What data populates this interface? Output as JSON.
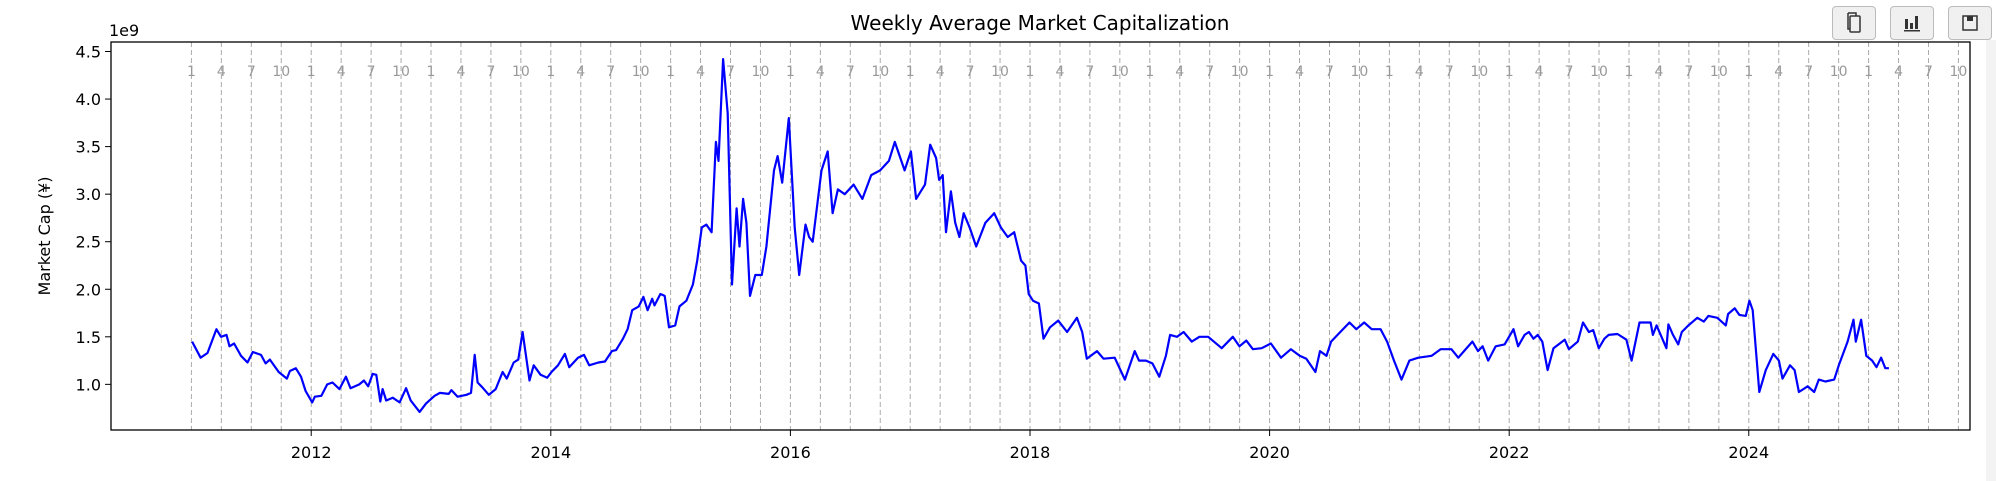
{
  "toolbar": {
    "buttons": [
      {
        "name": "copy-button",
        "icon": "copy-icon"
      },
      {
        "name": "chart-button",
        "icon": "bar-chart-icon"
      },
      {
        "name": "save-button",
        "icon": "floppy-disk-icon"
      }
    ]
  },
  "chart_data": {
    "type": "line",
    "title": "Weekly Average Market Capitalization",
    "xlabel": "",
    "ylabel": "Market Cap (¥)",
    "y_offset_label": "1e9",
    "y_unit_multiplier": 1000000000,
    "xlim": [
      "2010-05-01",
      "2025-11-06"
    ],
    "ylim": [
      0.52,
      4.6
    ],
    "yticks": [
      1.0,
      1.5,
      2.0,
      2.5,
      3.0,
      3.5,
      4.0,
      4.5
    ],
    "xticks": [
      "2012",
      "2014",
      "2016",
      "2018",
      "2020",
      "2022",
      "2024"
    ],
    "month_markers": {
      "years": [
        2011,
        2025
      ],
      "months": [
        "1",
        "4",
        "7",
        "10"
      ],
      "style": "dashed vertical lines"
    },
    "grid": false,
    "line_color": "#0000ff",
    "series": [
      {
        "x": [
          "2011-01-03",
          "2011-01-29",
          "2011-02-19",
          "2011-03-18",
          "2011-04-01",
          "2011-04-18",
          "2011-04-27",
          "2011-05-11",
          "2011-06-01",
          "2011-06-21",
          "2011-07-07",
          "2011-08-01",
          "2011-08-15",
          "2011-08-28",
          "2011-09-24",
          "2011-10-19",
          "2011-10-28",
          "2011-11-15",
          "2011-12-01",
          "2011-12-15",
          "2012-01-04",
          "2012-01-12",
          "2012-02-01",
          "2012-02-19",
          "2012-03-06",
          "2012-03-27",
          "2012-04-16",
          "2012-04-30",
          "2012-05-27",
          "2012-06-10",
          "2012-06-23",
          "2012-07-07",
          "2012-07-18",
          "2012-07-30",
          "2012-08-06",
          "2012-08-17",
          "2012-09-06",
          "2012-09-27",
          "2012-10-17",
          "2012-10-31",
          "2012-11-27",
          "2012-12-17",
          "2013-01-12",
          "2013-01-28",
          "2013-02-24",
          "2013-03-04",
          "2013-03-23",
          "2013-04-19",
          "2013-05-03",
          "2013-05-14",
          "2013-05-23",
          "2013-06-06",
          "2013-06-26",
          "2013-07-17",
          "2013-08-07",
          "2013-08-20",
          "2013-09-10",
          "2013-09-24",
          "2013-10-07",
          "2013-10-28",
          "2013-11-10",
          "2013-12-01",
          "2013-12-21",
          "2014-01-03",
          "2014-01-23",
          "2014-02-13",
          "2014-02-26",
          "2014-03-25",
          "2014-04-12",
          "2014-04-28",
          "2014-05-26",
          "2014-06-15",
          "2014-07-06",
          "2014-07-19",
          "2014-08-09",
          "2014-08-23",
          "2014-09-06",
          "2014-09-26",
          "2014-10-10",
          "2014-10-23",
          "2014-11-06",
          "2014-11-13",
          "2014-12-01",
          "2014-12-14",
          "2014-12-27",
          "2015-01-15",
          "2015-01-28",
          "2015-02-18",
          "2015-03-10",
          "2015-03-23",
          "2015-04-06",
          "2015-04-20",
          "2015-05-06",
          "2015-05-19",
          "2015-05-27",
          "2015-06-10",
          "2015-06-24",
          "2015-07-07",
          "2015-07-21",
          "2015-07-30",
          "2015-08-10",
          "2015-08-20",
          "2015-08-31",
          "2015-09-16",
          "2015-10-06",
          "2015-10-20",
          "2015-11-12",
          "2015-11-23",
          "2015-12-07",
          "2015-12-27",
          "2016-01-14",
          "2016-01-28",
          "2016-02-16",
          "2016-02-27",
          "2016-03-09",
          "2016-04-05",
          "2016-04-24",
          "2016-05-09",
          "2016-05-25",
          "2016-06-15",
          "2016-07-12",
          "2016-08-08",
          "2016-09-04",
          "2016-10-01",
          "2016-10-28",
          "2016-11-15",
          "2016-12-15",
          "2017-01-03",
          "2017-01-19",
          "2017-02-15",
          "2017-03-03",
          "2017-03-21",
          "2017-03-30",
          "2017-04-10",
          "2017-04-20",
          "2017-05-05",
          "2017-05-18",
          "2017-05-31",
          "2017-06-13",
          "2017-07-01",
          "2017-07-21",
          "2017-08-18",
          "2017-09-14",
          "2017-10-04",
          "2017-10-25",
          "2017-11-14",
          "2017-12-05",
          "2017-12-18",
          "2017-12-28",
          "2018-01-10",
          "2018-01-28",
          "2018-02-11",
          "2018-03-03",
          "2018-03-28",
          "2018-04-24",
          "2018-05-24",
          "2018-06-09",
          "2018-06-23",
          "2018-07-24",
          "2018-08-13",
          "2018-09-16",
          "2018-10-17",
          "2018-11-16",
          "2018-11-29",
          "2018-12-20",
          "2019-01-09",
          "2019-01-30",
          "2019-02-19",
          "2019-03-04",
          "2019-03-25",
          "2019-04-14",
          "2019-05-09",
          "2019-06-01",
          "2019-06-28",
          "2019-08-08",
          "2019-09-11",
          "2019-10-01",
          "2019-10-22",
          "2019-11-11",
          "2019-12-08",
          "2020-01-05",
          "2020-02-05",
          "2020-03-06",
          "2020-04-02",
          "2020-04-22",
          "2020-05-20",
          "2020-06-03",
          "2020-06-23",
          "2020-07-07",
          "2020-08-04",
          "2020-09-01",
          "2020-09-22",
          "2020-10-16",
          "2020-11-08",
          "2020-12-05",
          "2020-12-25",
          "2021-01-15",
          "2021-02-07",
          "2021-03-03",
          "2021-03-30",
          "2021-05-10",
          "2021-06-06",
          "2021-07-09",
          "2021-07-30",
          "2021-08-19",
          "2021-09-11",
          "2021-09-28",
          "2021-10-12",
          "2021-10-29",
          "2021-11-21",
          "2021-12-18",
          "2022-01-14",
          "2022-01-28",
          "2022-02-17",
          "2022-03-02",
          "2022-03-16",
          "2022-03-29",
          "2022-04-12",
          "2022-04-28",
          "2022-05-16",
          "2022-06-19",
          "2022-07-02",
          "2022-07-29",
          "2022-08-14",
          "2022-09-01",
          "2022-09-14",
          "2022-10-01",
          "2022-10-18",
          "2022-10-31",
          "2022-11-27",
          "2022-12-24",
          "2023-01-09",
          "2023-02-02",
          "2023-03-08",
          "2023-03-15",
          "2023-03-26",
          "2023-04-25",
          "2023-05-01",
          "2023-05-15",
          "2023-05-31",
          "2023-06-11",
          "2023-07-01",
          "2023-07-28",
          "2023-08-17",
          "2023-08-31",
          "2023-09-27",
          "2023-10-23",
          "2023-10-30",
          "2023-11-19",
          "2023-12-03",
          "2023-12-23",
          "2024-01-03",
          "2024-01-13",
          "2024-02-02",
          "2024-02-22",
          "2024-03-16",
          "2024-04-02",
          "2024-04-13",
          "2024-05-06",
          "2024-05-20",
          "2024-06-02",
          "2024-06-29",
          "2024-07-19",
          "2024-08-02",
          "2024-08-22",
          "2024-09-18",
          "2024-10-02",
          "2024-10-29",
          "2024-11-16",
          "2024-11-23",
          "2024-12-09",
          "2024-12-25",
          "2025-01-12",
          "2025-01-25",
          "2025-02-08",
          "2025-02-21",
          "2025-03-04"
        ],
        "y": [
          1.45,
          1.28,
          1.33,
          1.58,
          1.5,
          1.52,
          1.4,
          1.43,
          1.3,
          1.23,
          1.34,
          1.31,
          1.22,
          1.26,
          1.13,
          1.06,
          1.14,
          1.17,
          1.08,
          0.93,
          0.81,
          0.87,
          0.88,
          1.0,
          1.02,
          0.95,
          1.08,
          0.96,
          1.0,
          1.04,
          0.98,
          1.11,
          1.1,
          0.82,
          0.95,
          0.83,
          0.86,
          0.81,
          0.96,
          0.83,
          0.71,
          0.8,
          0.88,
          0.91,
          0.9,
          0.94,
          0.87,
          0.89,
          0.91,
          1.31,
          1.02,
          0.97,
          0.89,
          0.95,
          1.13,
          1.06,
          1.23,
          1.26,
          1.55,
          1.04,
          1.2,
          1.1,
          1.07,
          1.13,
          1.2,
          1.32,
          1.18,
          1.28,
          1.31,
          1.2,
          1.23,
          1.24,
          1.35,
          1.36,
          1.48,
          1.58,
          1.78,
          1.82,
          1.92,
          1.78,
          1.9,
          1.83,
          1.95,
          1.93,
          1.6,
          1.62,
          1.82,
          1.88,
          2.05,
          2.3,
          2.65,
          2.68,
          2.6,
          3.55,
          3.35,
          4.42,
          3.85,
          2.05,
          2.85,
          2.45,
          2.95,
          2.7,
          1.93,
          2.15,
          2.15,
          2.45,
          3.25,
          3.4,
          3.12,
          3.8,
          2.65,
          2.15,
          2.68,
          2.55,
          2.5,
          3.25,
          3.45,
          2.8,
          3.05,
          3.0,
          3.1,
          2.95,
          3.2,
          3.25,
          3.35,
          3.55,
          3.25,
          3.45,
          2.95,
          3.1,
          3.52,
          3.38,
          3.15,
          3.2,
          2.6,
          3.03,
          2.7,
          2.55,
          2.8,
          2.65,
          2.45,
          2.7,
          2.8,
          2.65,
          2.55,
          2.6,
          2.3,
          2.25,
          1.95,
          1.88,
          1.85,
          1.48,
          1.6,
          1.67,
          1.55,
          1.7,
          1.55,
          1.27,
          1.35,
          1.27,
          1.28,
          1.05,
          1.35,
          1.25,
          1.25,
          1.22,
          1.08,
          1.3,
          1.52,
          1.5,
          1.55,
          1.45,
          1.5,
          1.5,
          1.38,
          1.5,
          1.4,
          1.46,
          1.37,
          1.38,
          1.43,
          1.28,
          1.37,
          1.3,
          1.27,
          1.13,
          1.35,
          1.3,
          1.45,
          1.55,
          1.65,
          1.58,
          1.65,
          1.58,
          1.58,
          1.45,
          1.25,
          1.05,
          1.25,
          1.28,
          1.3,
          1.37,
          1.37,
          1.28,
          1.36,
          1.45,
          1.35,
          1.4,
          1.25,
          1.4,
          1.42,
          1.58,
          1.4,
          1.52,
          1.55,
          1.48,
          1.52,
          1.45,
          1.15,
          1.38,
          1.47,
          1.37,
          1.45,
          1.65,
          1.55,
          1.57,
          1.38,
          1.48,
          1.52,
          1.53,
          1.47,
          1.25,
          1.65,
          1.65,
          1.52,
          1.62,
          1.38,
          1.63,
          1.52,
          1.42,
          1.55,
          1.62,
          1.7,
          1.66,
          1.72,
          1.7,
          1.62,
          1.74,
          1.8,
          1.73,
          1.72,
          1.88,
          1.78,
          0.92,
          1.15,
          1.32,
          1.25,
          1.06,
          1.2,
          1.15,
          0.92,
          0.98,
          0.92,
          1.05,
          1.03,
          1.05,
          1.2,
          1.45,
          1.68,
          1.45,
          1.68,
          1.3,
          1.25,
          1.18,
          1.28,
          1.17,
          1.17
        ]
      }
    ]
  }
}
